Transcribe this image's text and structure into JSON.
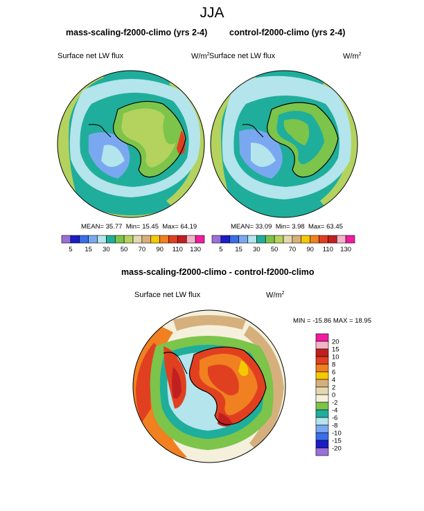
{
  "main_title": "JJA",
  "panels": [
    {
      "title": "mass-scaling-f2000-climo (yrs 2-4)",
      "variable": "Surface net LW flux",
      "units": "W/m",
      "mean_label": "MEAN=",
      "mean": "35.77",
      "min_label": "Min=",
      "min": "15.45",
      "max_label": "Max=",
      "max": "64.19"
    },
    {
      "title": "control-f2000-climo (yrs 2-4)",
      "variable": "Surface net LW flux",
      "units": "W/m",
      "mean_label": "MEAN=",
      "mean": "33.09",
      "min_label": "Min=",
      "min": "3.98",
      "max_label": "Max=",
      "max": "63.45"
    },
    {
      "title": "mass-scaling-f2000-climo - control-f2000-climo",
      "variable": "Surface net LW flux",
      "units": "W/m",
      "stats_text": "MIN = -15.86 MAX =  18.95"
    }
  ],
  "units_superscript": "2",
  "colorbar_top": {
    "labels": [
      "5",
      "15",
      "30",
      "50",
      "70",
      "90",
      "110",
      "130"
    ],
    "colors": [
      "#9b6fd8",
      "#1c1cc8",
      "#3a6ee8",
      "#7aa8f0",
      "#b4e4ec",
      "#1fae9c",
      "#7cc44a",
      "#b4d25e",
      "#e4d8b0",
      "#d6b07c",
      "#f5c800",
      "#f08020",
      "#e04020",
      "#c02020",
      "#f4b4c8",
      "#f01ca0"
    ]
  },
  "colorbar_diff": {
    "labels": [
      "20",
      "15",
      "10",
      "8",
      "6",
      "4",
      "2",
      "0",
      "-2",
      "-4",
      "-6",
      "-8",
      "-10",
      "-15",
      "-20"
    ],
    "colors": [
      "#f01ca0",
      "#f4b4c8",
      "#c02020",
      "#e04020",
      "#f08020",
      "#f5c800",
      "#d6b07c",
      "#e4d8b0",
      "#f4f0dc",
      "#7cc44a",
      "#1fae9c",
      "#b4e4ec",
      "#7aa8f0",
      "#3a6ee8",
      "#1c1cc8",
      "#9b6fd8"
    ]
  },
  "chart_data": [
    {
      "type": "heatmap",
      "title": "mass-scaling-f2000-climo (yrs 2-4)",
      "variable": "Surface net LW flux",
      "units": "W/m2",
      "projection": "south polar stereographic",
      "mean": 35.77,
      "min": 15.45,
      "max": 64.19,
      "contour_levels": [
        5,
        10,
        15,
        20,
        25,
        30,
        40,
        50,
        60,
        70,
        80,
        90,
        100,
        110,
        120,
        130
      ]
    },
    {
      "type": "heatmap",
      "title": "control-f2000-climo (yrs 2-4)",
      "variable": "Surface net LW flux",
      "units": "W/m2",
      "projection": "south polar stereographic",
      "mean": 33.09,
      "min": 3.98,
      "max": 63.45,
      "contour_levels": [
        5,
        10,
        15,
        20,
        25,
        30,
        40,
        50,
        60,
        70,
        80,
        90,
        100,
        110,
        120,
        130
      ]
    },
    {
      "type": "heatmap",
      "title": "mass-scaling-f2000-climo - control-f2000-climo",
      "variable": "Surface net LW flux",
      "units": "W/m2",
      "projection": "south polar stereographic",
      "min": -15.86,
      "max": 18.95,
      "contour_levels": [
        -20,
        -15,
        -10,
        -8,
        -6,
        -4,
        -2,
        0,
        2,
        4,
        6,
        8,
        10,
        15,
        20
      ]
    }
  ]
}
